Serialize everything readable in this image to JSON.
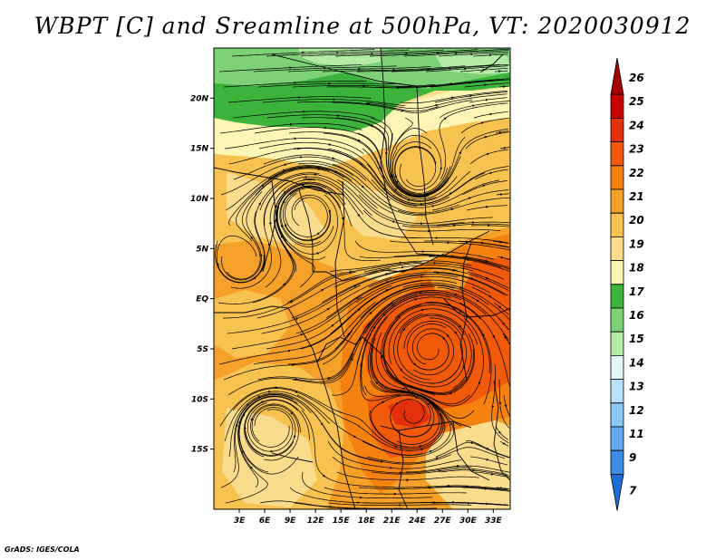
{
  "title": "WBPT [C] and Sreamline at 500hPa, VT: 2020030912",
  "credit": "GrADS: IGES/COLA",
  "map": {
    "region": "Central & Southern Africa",
    "lon_range": [
      0,
      35
    ],
    "lat_range": [
      -21,
      25
    ],
    "lat_ticks": [
      {
        "label": "20N",
        "lat": 20
      },
      {
        "label": "15N",
        "lat": 15
      },
      {
        "label": "10N",
        "lat": 10
      },
      {
        "label": "5N",
        "lat": 5
      },
      {
        "label": "EQ",
        "lat": 0
      },
      {
        "label": "5S",
        "lat": -5
      },
      {
        "label": "10S",
        "lat": -10
      },
      {
        "label": "15S",
        "lat": -15
      }
    ],
    "lon_ticks": [
      {
        "label": "3E",
        "lon": 3
      },
      {
        "label": "6E",
        "lon": 6
      },
      {
        "label": "9E",
        "lon": 9
      },
      {
        "label": "12E",
        "lon": 12
      },
      {
        "label": "15E",
        "lon": 15
      },
      {
        "label": "18E",
        "lon": 18
      },
      {
        "label": "21E",
        "lon": 21
      },
      {
        "label": "24E",
        "lon": 24
      },
      {
        "label": "27E",
        "lon": 27
      },
      {
        "label": "30E",
        "lon": 30
      },
      {
        "label": "33E",
        "lon": 33
      }
    ]
  },
  "colorbar": {
    "levels": [
      "26",
      "25",
      "24",
      "23",
      "22",
      "21",
      "20",
      "19",
      "18",
      "17",
      "16",
      "15",
      "14",
      "13",
      "12",
      "11",
      "9",
      "7"
    ],
    "colors": [
      "#a50000",
      "#c80000",
      "#e1300a",
      "#f05a0a",
      "#f5820f",
      "#f5a028",
      "#f7c250",
      "#f9dc8c",
      "#fdf5b4",
      "#3cb43c",
      "#7dd278",
      "#b4eba5",
      "#e1f8f5",
      "#b9e1fa",
      "#8cc8f5",
      "#64aaf0",
      "#3c8ce6",
      "#1e6ed7"
    ]
  },
  "field_colors": {
    "green_dark": "#3cb43c",
    "green_mid": "#7dd278",
    "green_light": "#b4eba5",
    "c18": "#fdf5b4",
    "c19": "#f9dc8c",
    "c20": "#f7c250",
    "c21": "#f5a028",
    "c22": "#f5820f",
    "c23": "#f05a0a",
    "c24": "#e1300a"
  }
}
